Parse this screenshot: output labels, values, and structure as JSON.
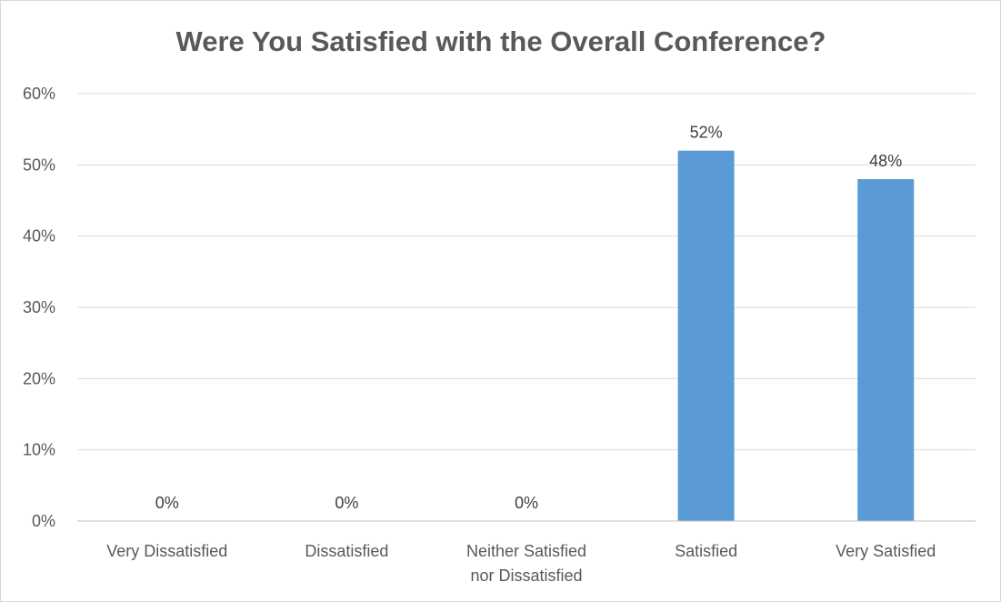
{
  "chart_data": {
    "type": "bar",
    "title": "Were You Satisfied with the Overall Conference?",
    "categories": [
      [
        "Very Dissatisfied"
      ],
      [
        "Dissatisfied"
      ],
      [
        "Neither Satisfied",
        "nor Dissatisfied"
      ],
      [
        "Satisfied"
      ],
      [
        "Very Satisfied"
      ]
    ],
    "values": [
      0,
      0,
      0,
      52,
      48
    ],
    "data_labels": [
      "0%",
      "0%",
      "0%",
      "52%",
      "48%"
    ],
    "ylim": [
      0,
      60
    ],
    "yticks": [
      0,
      10,
      20,
      30,
      40,
      50,
      60
    ],
    "ytick_labels": [
      "0%",
      "10%",
      "20%",
      "30%",
      "40%",
      "50%",
      "60%"
    ],
    "xlabel": "",
    "ylabel": "",
    "grid": true,
    "legend": "none",
    "colors": {
      "bar": "#5b9bd5",
      "grid": "#d9d9d9",
      "axis": "#bfbfbf",
      "text": "#595959",
      "data_label": "#404040",
      "border": "#d9d9d9"
    }
  }
}
